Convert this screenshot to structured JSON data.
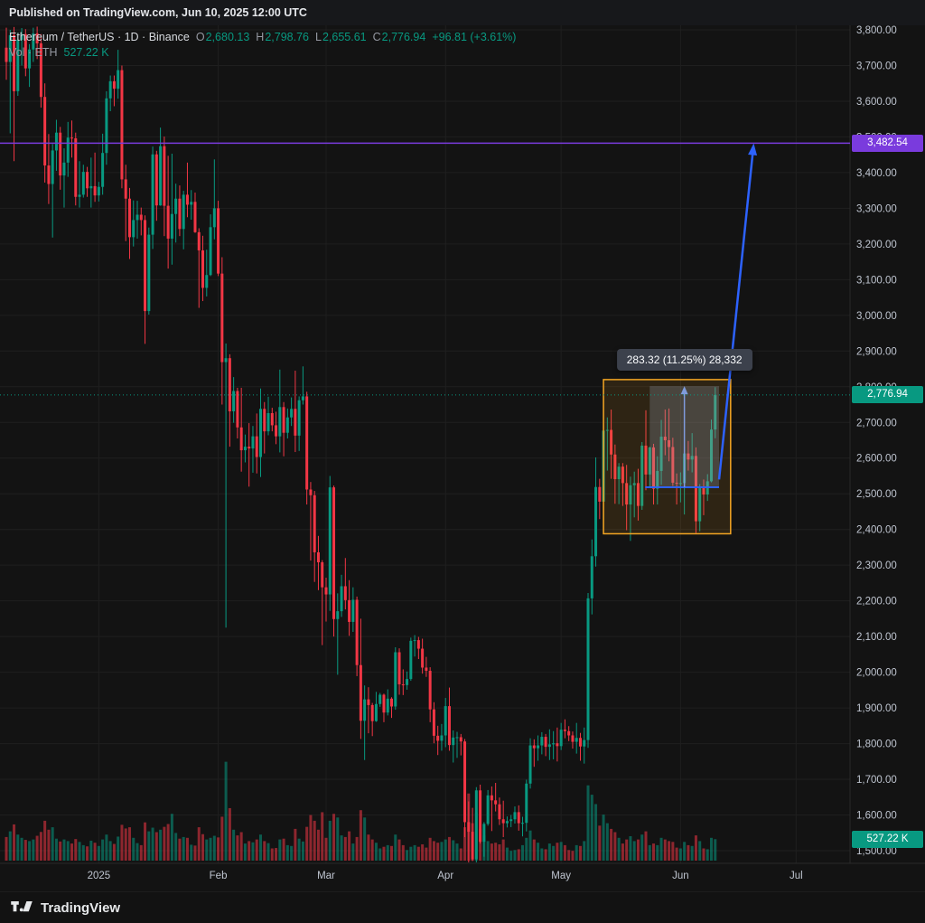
{
  "published_bar": {
    "text": "Published on TradingView.com, Jun 10, 2025 12:00 UTC"
  },
  "footer": {
    "brand": "TradingView"
  },
  "legend": {
    "symbol": "Ethereum / TetherUS · 1D · Binance",
    "o_label": "O",
    "o": "2,680.13",
    "h_label": "H",
    "h": "2,798.76",
    "l_label": "L",
    "l": "2,655.61",
    "c_label": "C",
    "c": "2,776.94",
    "change": "+96.81 (+3.61%)",
    "vol_label": "Vol · ETH",
    "vol_value": "527.22 K"
  },
  "price_labels": {
    "level_line": {
      "value": "3,482.54",
      "price": 3482.54
    },
    "last_price": {
      "value": "2,776.94",
      "price": 2776.94
    },
    "volume": {
      "value": "527.22 K",
      "volume_k": 527.22
    }
  },
  "drawings": {
    "highlight_box": {
      "from_index": 155,
      "to_index": 188,
      "top_price": 2820,
      "bottom_price": 2388
    },
    "measure_tool": {
      "label": "283.32 (11.25%) 28,332",
      "from_price": 2518.4,
      "to_price": 2801.72,
      "from_index": 167,
      "to_index": 185
    },
    "trend_arrow": {
      "from_index": 185,
      "from_price": 2540,
      "to_index": 194,
      "to_price": 3482
    }
  },
  "colors": {
    "up": "#089981",
    "down": "#f23645",
    "bg": "#131313",
    "grid": "#1f1f1f",
    "axis_line": "#2a2a2a",
    "axis_text": "#bfc5d0",
    "level": "#7a3bdd",
    "blue": "#2d62ff",
    "box_orange": "#f5a623",
    "box_fill": "rgba(245,166,35,0.12)",
    "band_fill": "rgba(157,168,189,0.25)",
    "last_line": "#089981"
  },
  "chart_data": {
    "type": "candlestick",
    "title": "Ethereum / TetherUS · 1D · Binance",
    "interval": "1D",
    "last_ohlc": {
      "open": 2680.13,
      "high": 2798.76,
      "low": 2655.61,
      "close": 2776.94,
      "change": 96.81,
      "change_pct": 3.61,
      "volume_k": 527.22
    },
    "y_axis": {
      "min": 1500,
      "max": 3800,
      "step": 100,
      "format": "#,##0.00",
      "ticks": [
        3800,
        3700,
        3600,
        3500,
        3400,
        3300,
        3200,
        3100,
        3000,
        2900,
        2800,
        2700,
        2600,
        2500,
        2400,
        2300,
        2200,
        2100,
        2000,
        1900,
        1800,
        1700,
        1600,
        1500
      ]
    },
    "x_axis_labels": [
      {
        "label": "2025",
        "index": 24
      },
      {
        "label": "Feb",
        "index": 55
      },
      {
        "label": "Mar",
        "index": 83
      },
      {
        "label": "Apr",
        "index": 114
      },
      {
        "label": "May",
        "index": 144
      },
      {
        "label": "Jun",
        "index": 175
      },
      {
        "label": "Jul",
        "index": 205
      }
    ],
    "candles_format": [
      "open",
      "high",
      "low",
      "close",
      "volume_k"
    ],
    "candles": [
      [
        3750,
        3806,
        3660,
        3710,
        580
      ],
      [
        3710,
        3800,
        3510,
        3785,
        720
      ],
      [
        3785,
        3808,
        3432,
        3628,
        890
      ],
      [
        3628,
        3792,
        3615,
        3772,
        640
      ],
      [
        3772,
        3805,
        3700,
        3788,
        560
      ],
      [
        3788,
        3802,
        3670,
        3692,
        510
      ],
      [
        3692,
        3760,
        3640,
        3745,
        480
      ],
      [
        3745,
        3806,
        3710,
        3790,
        520
      ],
      [
        3790,
        3809,
        3718,
        3762,
        610
      ],
      [
        3762,
        3788,
        3582,
        3612,
        705
      ],
      [
        3612,
        3650,
        3372,
        3420,
        980
      ],
      [
        3420,
        3508,
        3312,
        3368,
        760
      ],
      [
        3368,
        3480,
        3218,
        3462,
        820
      ],
      [
        3462,
        3548,
        3405,
        3512,
        540
      ],
      [
        3512,
        3528,
        3352,
        3392,
        470
      ],
      [
        3392,
        3468,
        3302,
        3428,
        520
      ],
      [
        3428,
        3542,
        3388,
        3498,
        480
      ],
      [
        3498,
        3546,
        3442,
        3496,
        420
      ],
      [
        3496,
        3512,
        3308,
        3332,
        530
      ],
      [
        3332,
        3432,
        3302,
        3338,
        460
      ],
      [
        3338,
        3422,
        3330,
        3402,
        380
      ],
      [
        3402,
        3416,
        3332,
        3356,
        350
      ],
      [
        3356,
        3442,
        3302,
        3362,
        490
      ],
      [
        3362,
        3456,
        3318,
        3336,
        440
      ],
      [
        3336,
        3374,
        3319,
        3360,
        360
      ],
      [
        3360,
        3509,
        3338,
        3455,
        520
      ],
      [
        3455,
        3628,
        3422,
        3608,
        640
      ],
      [
        3608,
        3672,
        3572,
        3656,
        480
      ],
      [
        3656,
        3672,
        3586,
        3635,
        410
      ],
      [
        3635,
        3744,
        3607,
        3687,
        590
      ],
      [
        3687,
        3700,
        3356,
        3381,
        880
      ],
      [
        3381,
        3422,
        3208,
        3327,
        790
      ],
      [
        3327,
        3357,
        3158,
        3219,
        820
      ],
      [
        3219,
        3322,
        3193,
        3267,
        560
      ],
      [
        3267,
        3321,
        3215,
        3282,
        430
      ],
      [
        3282,
        3302,
        3224,
        3267,
        380
      ],
      [
        3267,
        3280,
        2920,
        3012,
        940
      ],
      [
        3012,
        3246,
        3002,
        3226,
        720
      ],
      [
        3226,
        3473,
        3186,
        3451,
        810
      ],
      [
        3451,
        3461,
        3265,
        3308,
        700
      ],
      [
        3308,
        3526,
        3307,
        3474,
        760
      ],
      [
        3474,
        3501,
        3222,
        3307,
        830
      ],
      [
        3307,
        3447,
        3131,
        3215,
        900
      ],
      [
        3215,
        3453,
        3142,
        3284,
        1150
      ],
      [
        3284,
        3369,
        3204,
        3327,
        680
      ],
      [
        3327,
        3364,
        3222,
        3242,
        540
      ],
      [
        3242,
        3349,
        3185,
        3338,
        580
      ],
      [
        3338,
        3428,
        3275,
        3310,
        560
      ],
      [
        3310,
        3351,
        3268,
        3318,
        390
      ],
      [
        3318,
        3344,
        3231,
        3233,
        370
      ],
      [
        3233,
        3244,
        3021,
        3182,
        820
      ],
      [
        3182,
        3223,
        3040,
        3077,
        650
      ],
      [
        3077,
        3184,
        3053,
        3113,
        520
      ],
      [
        3113,
        3283,
        3110,
        3247,
        560
      ],
      [
        3247,
        3437,
        3213,
        3300,
        610
      ],
      [
        3300,
        3321,
        3110,
        3117,
        570
      ],
      [
        3117,
        3163,
        2750,
        2869,
        1080
      ],
      [
        2869,
        2921,
        2125,
        2880,
        2430
      ],
      [
        2880,
        2891,
        2632,
        2731,
        1290
      ],
      [
        2731,
        2827,
        2699,
        2788,
        760
      ],
      [
        2788,
        2797,
        2655,
        2686,
        620
      ],
      [
        2686,
        2797,
        2562,
        2622,
        700
      ],
      [
        2622,
        2666,
        2588,
        2632,
        420
      ],
      [
        2632,
        2698,
        2520,
        2627,
        480
      ],
      [
        2627,
        2690,
        2559,
        2661,
        450
      ],
      [
        2661,
        2725,
        2557,
        2603,
        520
      ],
      [
        2603,
        2795,
        2547,
        2738,
        640
      ],
      [
        2738,
        2757,
        2613,
        2675,
        480
      ],
      [
        2675,
        2772,
        2664,
        2726,
        430
      ],
      [
        2726,
        2741,
        2675,
        2692,
        300
      ],
      [
        2692,
        2730,
        2639,
        2661,
        310
      ],
      [
        2661,
        2848,
        2616,
        2743,
        520
      ],
      [
        2743,
        2757,
        2605,
        2671,
        540
      ],
      [
        2671,
        2739,
        2655,
        2714,
        380
      ],
      [
        2714,
        2770,
        2690,
        2738,
        360
      ],
      [
        2738,
        2845,
        2617,
        2663,
        780
      ],
      [
        2663,
        2773,
        2620,
        2762,
        540
      ],
      [
        2762,
        2857,
        2750,
        2773,
        470
      ],
      [
        2773,
        2786,
        2470,
        2512,
        830
      ],
      [
        2512,
        2533,
        2313,
        2496,
        1120
      ],
      [
        2496,
        2508,
        2253,
        2336,
        980
      ],
      [
        2336,
        2382,
        2230,
        2308,
        760
      ],
      [
        2308,
        2314,
        2076,
        2238,
        1190
      ],
      [
        2238,
        2265,
        2142,
        2218,
        560
      ],
      [
        2218,
        2550,
        2172,
        2518,
        980
      ],
      [
        2518,
        2523,
        2100,
        2149,
        1150
      ],
      [
        2149,
        2221,
        1993,
        2171,
        1060
      ],
      [
        2171,
        2273,
        2155,
        2241,
        620
      ],
      [
        2241,
        2320,
        2176,
        2202,
        580
      ],
      [
        2202,
        2258,
        2102,
        2141,
        720
      ],
      [
        2141,
        2238,
        2113,
        2203,
        420
      ],
      [
        2203,
        2212,
        1989,
        2020,
        580
      ],
      [
        2020,
        2150,
        1813,
        1864,
        1240
      ],
      [
        1864,
        1963,
        1754,
        1924,
        1060
      ],
      [
        1924,
        1958,
        1829,
        1908,
        640
      ],
      [
        1908,
        1914,
        1821,
        1863,
        520
      ],
      [
        1863,
        1945,
        1861,
        1911,
        440
      ],
      [
        1911,
        1942,
        1903,
        1937,
        300
      ],
      [
        1937,
        1940,
        1860,
        1887,
        340
      ],
      [
        1887,
        1952,
        1879,
        1926,
        380
      ],
      [
        1926,
        1930,
        1872,
        1904,
        360
      ],
      [
        1904,
        2070,
        1895,
        2056,
        640
      ],
      [
        2056,
        2067,
        1937,
        1966,
        520
      ],
      [
        1966,
        2008,
        1936,
        1964,
        380
      ],
      [
        1964,
        2002,
        1951,
        1981,
        260
      ],
      [
        1981,
        2097,
        1976,
        2088,
        340
      ],
      [
        2088,
        2104,
        2044,
        2090,
        380
      ],
      [
        2090,
        2099,
        2037,
        2066,
        340
      ],
      [
        2066,
        2094,
        1996,
        2013,
        400
      ],
      [
        2013,
        2043,
        1987,
        2004,
        320
      ],
      [
        2004,
        2014,
        1860,
        1896,
        560
      ],
      [
        1896,
        1916,
        1801,
        1822,
        480
      ],
      [
        1822,
        1850,
        1768,
        1808,
        440
      ],
      [
        1808,
        1855,
        1780,
        1823,
        460
      ],
      [
        1823,
        1928,
        1790,
        1905,
        520
      ],
      [
        1905,
        1957,
        1780,
        1796,
        580
      ],
      [
        1796,
        1837,
        1747,
        1817,
        500
      ],
      [
        1817,
        1833,
        1760,
        1818,
        420
      ],
      [
        1818,
        1827,
        1767,
        1806,
        300
      ],
      [
        1806,
        1813,
        1538,
        1580,
        820
      ],
      [
        1580,
        1638,
        1412,
        1553,
        1650
      ],
      [
        1553,
        1620,
        1471,
        1476,
        920
      ],
      [
        1476,
        1678,
        1460,
        1669,
        1180
      ],
      [
        1669,
        1685,
        1520,
        1525,
        780
      ],
      [
        1525,
        1580,
        1483,
        1575,
        620
      ],
      [
        1575,
        1670,
        1570,
        1655,
        480
      ],
      [
        1655,
        1680,
        1555,
        1641,
        420
      ],
      [
        1641,
        1690,
        1610,
        1630,
        440
      ],
      [
        1630,
        1649,
        1572,
        1588,
        400
      ],
      [
        1588,
        1640,
        1538,
        1577,
        520
      ],
      [
        1577,
        1596,
        1565,
        1583,
        320
      ],
      [
        1583,
        1600,
        1566,
        1588,
        240
      ],
      [
        1588,
        1624,
        1576,
        1608,
        260
      ],
      [
        1608,
        1627,
        1556,
        1577,
        280
      ],
      [
        1577,
        1595,
        1540,
        1578,
        380
      ],
      [
        1578,
        1699,
        1554,
        1688,
        560
      ],
      [
        1688,
        1815,
        1674,
        1795,
        740
      ],
      [
        1795,
        1812,
        1735,
        1787,
        520
      ],
      [
        1787,
        1823,
        1752,
        1795,
        440
      ],
      [
        1795,
        1832,
        1770,
        1819,
        300
      ],
      [
        1819,
        1827,
        1765,
        1791,
        280
      ],
      [
        1791,
        1840,
        1754,
        1798,
        420
      ],
      [
        1798,
        1835,
        1756,
        1801,
        360
      ],
      [
        1801,
        1845,
        1750,
        1793,
        440
      ],
      [
        1793,
        1858,
        1782,
        1839,
        460
      ],
      [
        1839,
        1868,
        1815,
        1835,
        380
      ],
      [
        1835,
        1849,
        1807,
        1823,
        260
      ],
      [
        1823,
        1834,
        1786,
        1805,
        240
      ],
      [
        1805,
        1858,
        1772,
        1816,
        380
      ],
      [
        1816,
        1830,
        1752,
        1792,
        360
      ],
      [
        1792,
        1845,
        1744,
        1810,
        480
      ],
      [
        1810,
        2222,
        1788,
        2207,
        1850
      ],
      [
        2207,
        2372,
        2162,
        2325,
        1620
      ],
      [
        2325,
        2602,
        2296,
        2519,
        1390
      ],
      [
        2519,
        2542,
        2429,
        2478,
        860
      ],
      [
        2478,
        2691,
        2425,
        2677,
        1130
      ],
      [
        2677,
        2714,
        2565,
        2679,
        920
      ],
      [
        2679,
        2736,
        2542,
        2610,
        780
      ],
      [
        2610,
        2638,
        2472,
        2541,
        700
      ],
      [
        2541,
        2586,
        2471,
        2576,
        560
      ],
      [
        2576,
        2586,
        2466,
        2530,
        420
      ],
      [
        2530,
        2581,
        2398,
        2470,
        520
      ],
      [
        2470,
        2548,
        2368,
        2524,
        600
      ],
      [
        2524,
        2562,
        2434,
        2530,
        480
      ],
      [
        2530,
        2570,
        2425,
        2466,
        520
      ],
      [
        2466,
        2645,
        2455,
        2635,
        640
      ],
      [
        2635,
        2734,
        2510,
        2554,
        720
      ],
      [
        2554,
        2632,
        2521,
        2630,
        380
      ],
      [
        2630,
        2640,
        2470,
        2514,
        420
      ],
      [
        2514,
        2605,
        2470,
        2564,
        380
      ],
      [
        2564,
        2707,
        2525,
        2660,
        560
      ],
      [
        2660,
        2736,
        2608,
        2650,
        520
      ],
      [
        2650,
        2739,
        2591,
        2631,
        480
      ],
      [
        2631,
        2657,
        2522,
        2531,
        460
      ],
      [
        2531,
        2557,
        2470,
        2530,
        320
      ],
      [
        2530,
        2560,
        2476,
        2530,
        300
      ],
      [
        2530,
        2633,
        2442,
        2613,
        460
      ],
      [
        2613,
        2648,
        2565,
        2596,
        380
      ],
      [
        2596,
        2670,
        2560,
        2606,
        360
      ],
      [
        2606,
        2630,
        2390,
        2423,
        620
      ],
      [
        2423,
        2527,
        2395,
        2519,
        480
      ],
      [
        2519,
        2540,
        2440,
        2498,
        300
      ],
      [
        2498,
        2555,
        2480,
        2535,
        280
      ],
      [
        2535,
        2708,
        2532,
        2680,
        560
      ],
      [
        2680.13,
        2798.76,
        2655.61,
        2776.94,
        527.22
      ]
    ]
  }
}
